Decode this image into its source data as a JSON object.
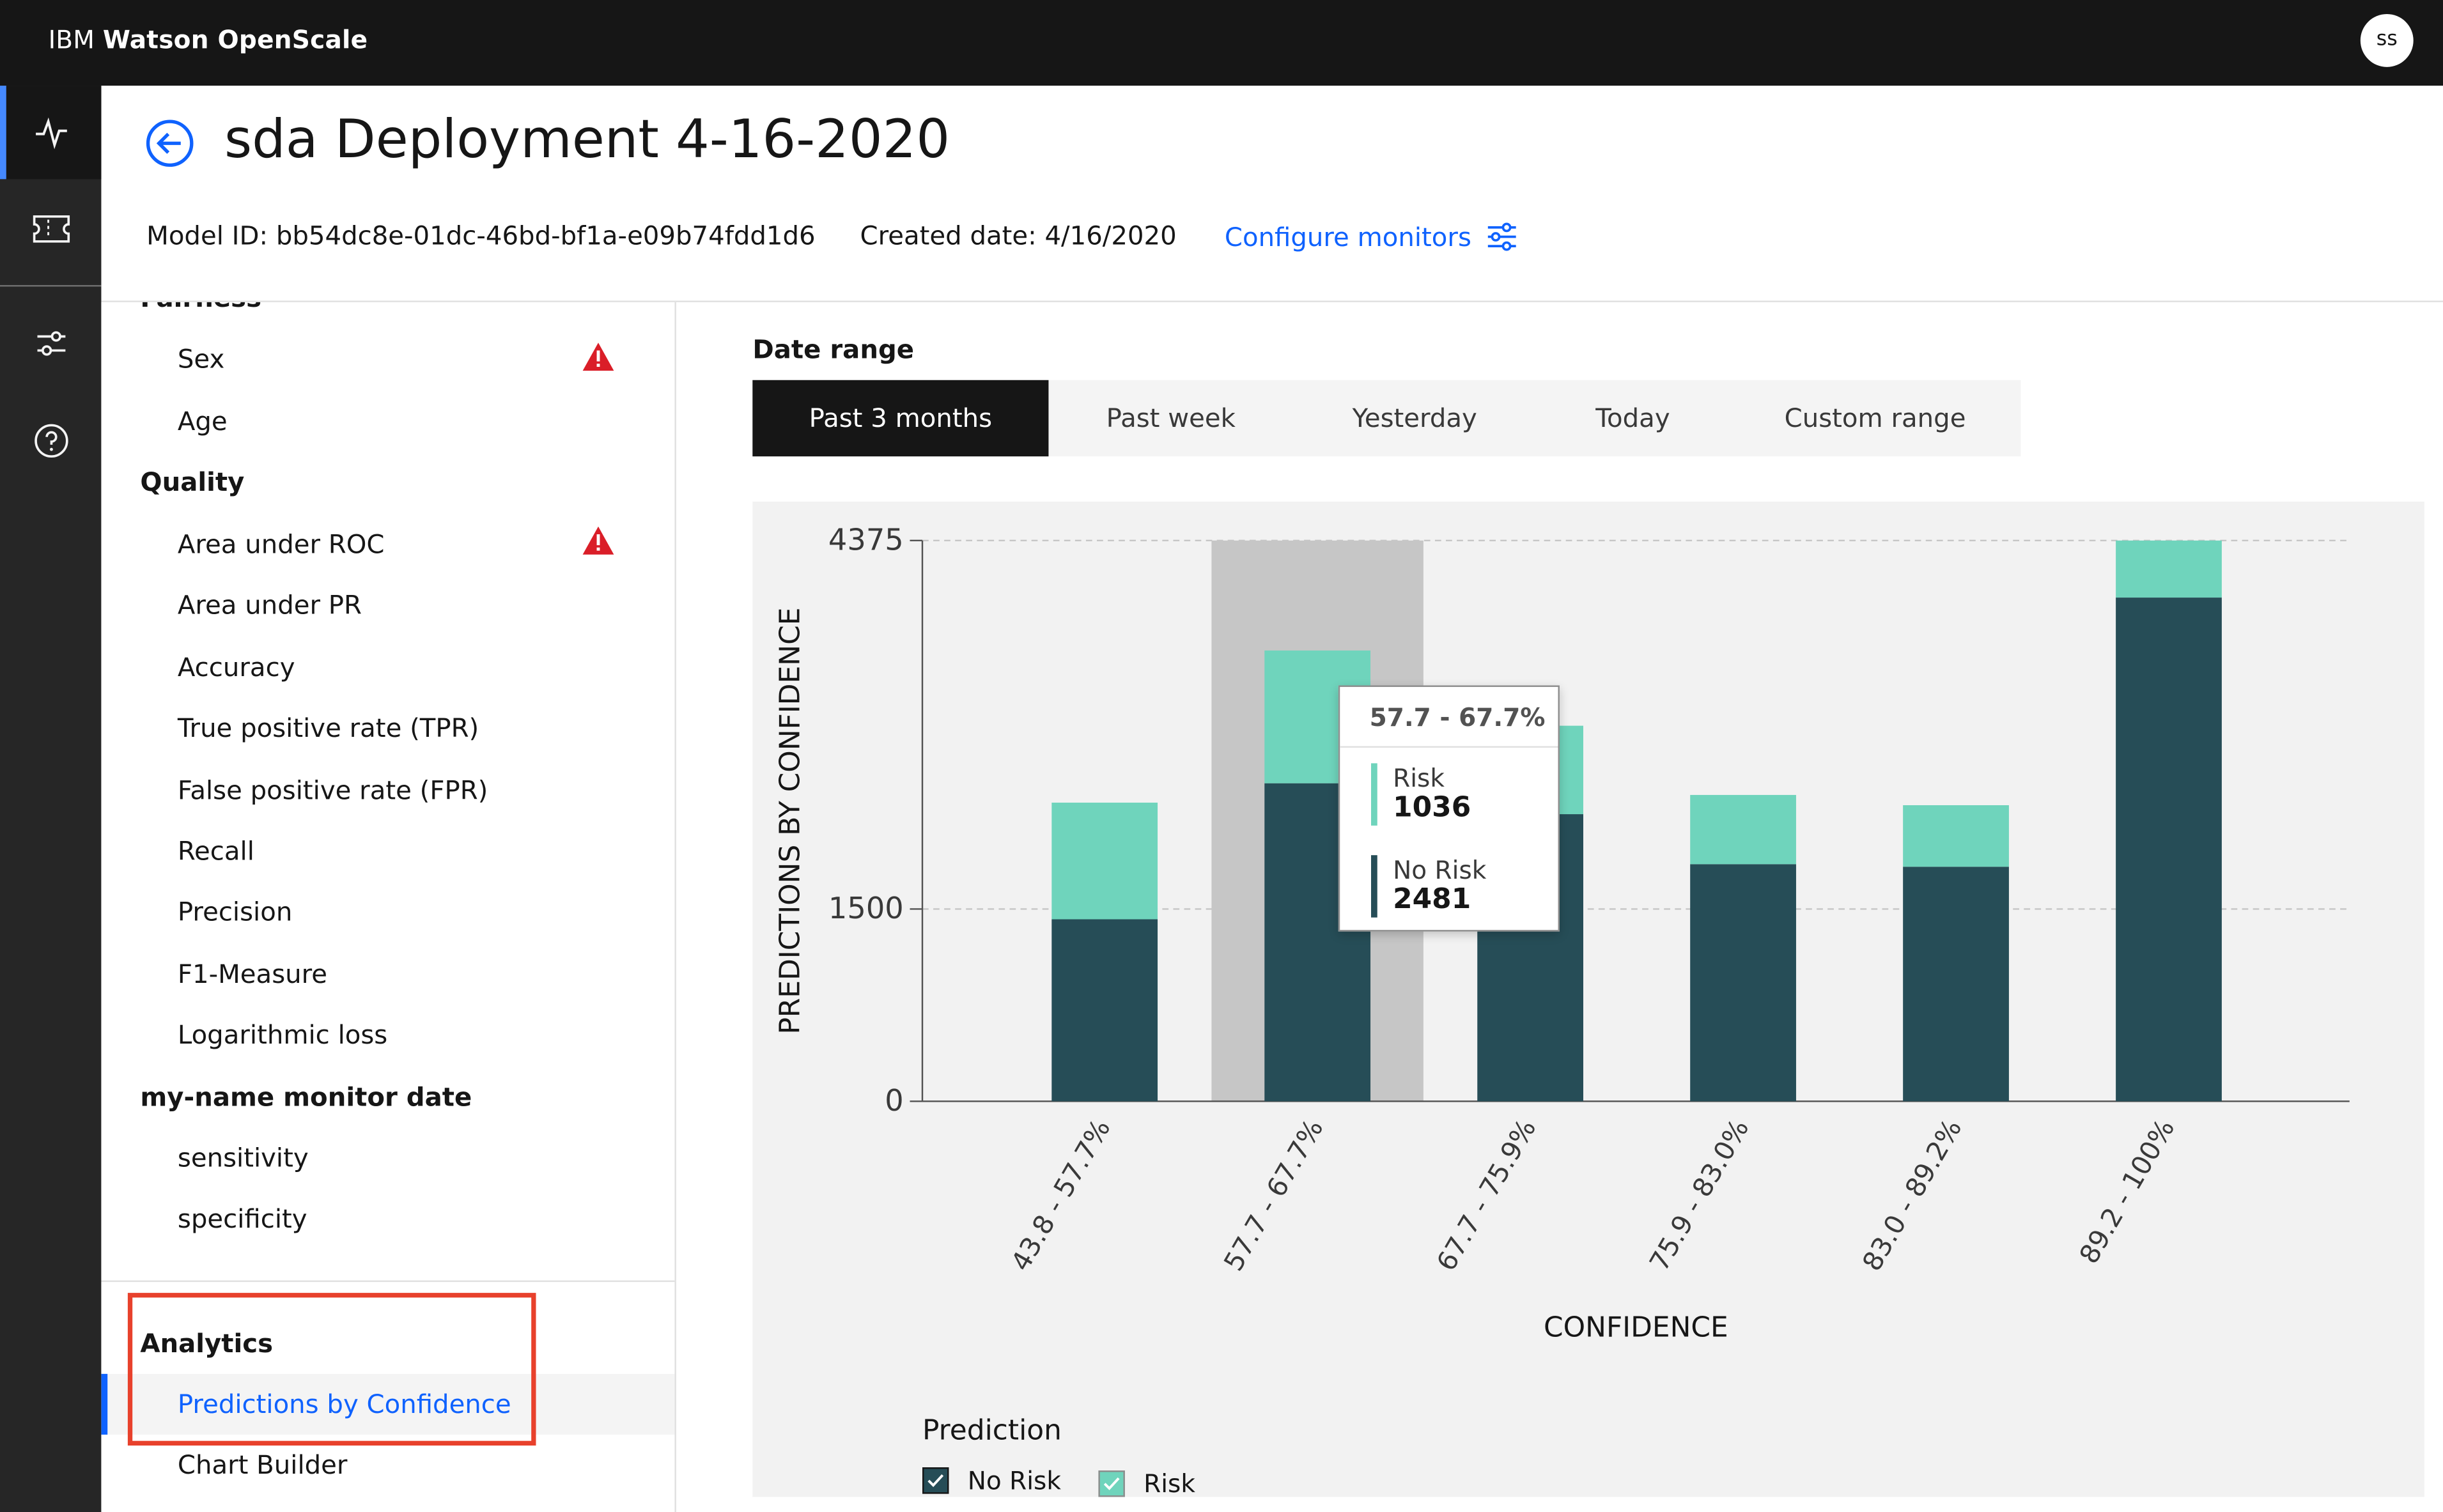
{
  "app": {
    "brand_prefix": "IBM",
    "brand_name": "Watson OpenScale",
    "user_initials": "ss"
  },
  "rail": {
    "items": [
      {
        "icon": "activity-icon",
        "active": true
      },
      {
        "icon": "ticket-icon",
        "active": false
      },
      {
        "icon": "settings-sliders-icon",
        "active": false
      },
      {
        "icon": "help-icon",
        "active": false
      }
    ]
  },
  "header": {
    "title": "sda Deployment 4-16-2020",
    "model_id": "Model ID: bb54dc8e-01dc-46bd-bf1a-e09b74fdd1d6",
    "created_date": "Created date: 4/16/2020",
    "configure_label": "Configure monitors"
  },
  "nav": {
    "partial_category": "Fairness",
    "fairness_items": [
      {
        "label": "Sex",
        "warning": true
      },
      {
        "label": "Age",
        "warning": false
      }
    ],
    "quality_label": "Quality",
    "quality_items": [
      {
        "label": "Area under ROC",
        "warning": true
      },
      {
        "label": "Area under PR"
      },
      {
        "label": "Accuracy"
      },
      {
        "label": "True positive rate (TPR)"
      },
      {
        "label": "False positive rate (FPR)"
      },
      {
        "label": "Recall"
      },
      {
        "label": "Precision"
      },
      {
        "label": "F1-Measure"
      },
      {
        "label": "Logarithmic loss"
      }
    ],
    "custom_label": "my-name monitor date",
    "custom_items": [
      {
        "label": "sensitivity"
      },
      {
        "label": "specificity"
      }
    ],
    "analytics_label": "Analytics",
    "analytics_items": [
      {
        "label": "Predictions by Confidence",
        "selected": true
      },
      {
        "label": "Chart Builder"
      }
    ]
  },
  "date_range": {
    "label": "Date range",
    "tabs": [
      "Past 3 months",
      "Past week",
      "Yesterday",
      "Today",
      "Custom range"
    ],
    "active_index": 0
  },
  "colors": {
    "no_risk": "#264d57",
    "risk": "#6fd4bc",
    "hover_band": "#c6c6c6",
    "accent": "#0f62fe",
    "warning": "#da1e28"
  },
  "chart_data": {
    "type": "bar",
    "stacked": true,
    "xlabel": "CONFIDENCE",
    "ylabel": "PREDICTIONS BY CONFIDENCE",
    "ylim": [
      0,
      4375
    ],
    "yticks": [
      0,
      1500,
      4375
    ],
    "categories": [
      "43.8 - 57.7%",
      "57.7 - 67.7%",
      "67.7 - 75.9%",
      "75.9 - 83.0%",
      "83.0 - 89.2%",
      "89.2 - 100%"
    ],
    "series": [
      {
        "name": "No Risk",
        "values": [
          1420,
          2481,
          2240,
          1850,
          1830,
          3930
        ]
      },
      {
        "name": "Risk",
        "values": [
          910,
          1036,
          690,
          540,
          480,
          445
        ]
      }
    ],
    "grid": true,
    "highlighted_category": "57.7 - 67.7%",
    "legend_title": "Prediction",
    "legend_position": "bottom-left"
  },
  "tooltip": {
    "title": "57.7 - 67.7%",
    "entries": [
      {
        "name": "Risk",
        "value": "1036"
      },
      {
        "name": "No Risk",
        "value": "2481"
      }
    ]
  },
  "legend": {
    "title": "Prediction",
    "items": [
      {
        "label": "No Risk"
      },
      {
        "label": "Risk"
      }
    ]
  }
}
